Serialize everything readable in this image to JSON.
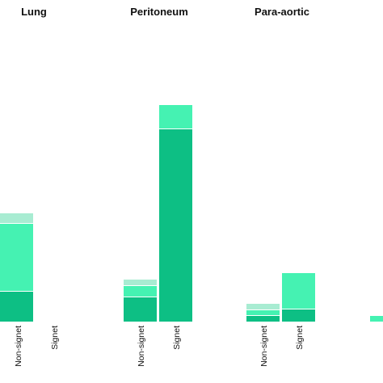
{
  "chart_data": {
    "type": "bar",
    "stacked": true,
    "grid": false,
    "legend": "none",
    "panels": [
      {
        "title": "Lung",
        "categories": [
          "Non-signet",
          "Signet"
        ],
        "segments": [
          [
            {
              "value": 37,
              "color": "#0dbf84"
            },
            {
              "value": 83,
              "color": "#45f2b2"
            },
            {
              "value": 12,
              "color": "#a8ecd2"
            }
          ],
          []
        ]
      },
      {
        "title": "Peritoneum",
        "categories": [
          "Non-signet",
          "Signet"
        ],
        "segments": [
          [
            {
              "value": 30,
              "color": "#0dbf84"
            },
            {
              "value": 13,
              "color": "#45f2b2"
            },
            {
              "value": 7,
              "color": "#a8ecd2"
            }
          ],
          [
            {
              "value": 238,
              "color": "#0dbf84"
            },
            {
              "value": 29,
              "color": "#45f2b2"
            }
          ]
        ]
      },
      {
        "title": "Para-aortic",
        "categories": [
          "Non-signet",
          "Signet"
        ],
        "segments": [
          [
            {
              "value": 7,
              "color": "#0dbf84"
            },
            {
              "value": 6,
              "color": "#45f2b2"
            },
            {
              "value": 7,
              "color": "#a8ecd2"
            }
          ],
          [
            {
              "value": 15,
              "color": "#0dbf84"
            },
            {
              "value": 44,
              "color": "#45f2b2"
            }
          ]
        ]
      },
      {
        "title": "",
        "categories": [],
        "segments": [
          [
            {
              "value": 7,
              "color": "#45f2b2"
            }
          ]
        ]
      }
    ]
  }
}
